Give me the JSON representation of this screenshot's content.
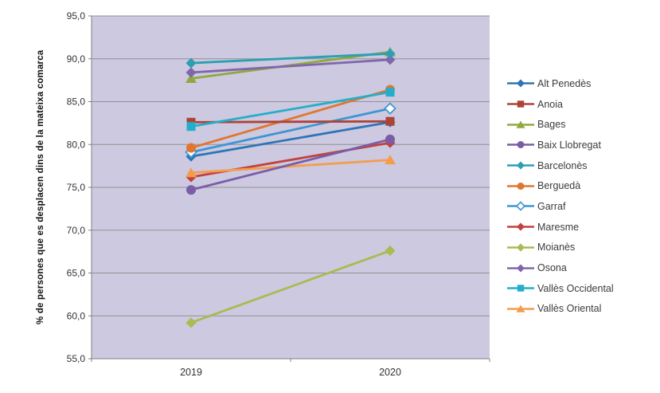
{
  "chart_data": {
    "type": "line",
    "title": "",
    "xlabel": "",
    "ylabel": "% de persones que es desplacen dins de la mateixa comarca",
    "categories": [
      "2019",
      "2020"
    ],
    "ylim": [
      55,
      95
    ],
    "ytick_values": [
      95,
      90,
      85,
      80,
      75,
      70,
      65,
      60,
      55
    ],
    "ytick_labels": [
      "95,0",
      "90,0",
      "85,0",
      "80,0",
      "75,0",
      "70,0",
      "65,0",
      "60,0",
      "55,0"
    ],
    "grid": true,
    "legend_position": "right",
    "colors": {
      "plot_bg": "#CDC9E0",
      "grid": "#929292",
      "axis": "#808080",
      "tick_text": "#333333",
      "legend_text": "#3B3B3B"
    },
    "series": [
      {
        "name": "Alt Penedès",
        "color": "#2E75B6",
        "marker": "diamond",
        "values": [
          78.6,
          82.6
        ]
      },
      {
        "name": "Anoia",
        "color": "#AC4338",
        "marker": "square",
        "values": [
          82.6,
          82.7
        ]
      },
      {
        "name": "Bages",
        "color": "#8FA93C",
        "marker": "triangle",
        "values": [
          87.7,
          90.8
        ]
      },
      {
        "name": "Baix Llobregat",
        "color": "#7A5DA6",
        "marker": "circle",
        "values": [
          74.7,
          80.6
        ]
      },
      {
        "name": "Barcelonès",
        "color": "#2B9FB3",
        "marker": "diamond",
        "values": [
          89.5,
          90.6
        ]
      },
      {
        "name": "Berguedà",
        "color": "#E0762F",
        "marker": "circle",
        "values": [
          79.6,
          86.4
        ]
      },
      {
        "name": "Garraf",
        "color": "#3D96D2",
        "marker": "open-diamond",
        "values": [
          79.1,
          84.2
        ]
      },
      {
        "name": "Maresme",
        "color": "#C2413F",
        "marker": "diamond",
        "values": [
          76.2,
          80.2
        ]
      },
      {
        "name": "Moianès",
        "color": "#A7BC51",
        "marker": "diamond",
        "values": [
          59.2,
          67.6
        ]
      },
      {
        "name": "Osona",
        "color": "#8166AB",
        "marker": "diamond",
        "values": [
          88.4,
          89.9
        ]
      },
      {
        "name": "Vallès Occidental",
        "color": "#25AEC9",
        "marker": "square",
        "values": [
          82.1,
          86.1
        ]
      },
      {
        "name": "Vallès Oriental",
        "color": "#F59C4C",
        "marker": "triangle",
        "values": [
          76.7,
          78.2
        ]
      }
    ],
    "paint_order": [
      "Moianès",
      "Maresme",
      "Vallès Oriental",
      "Alt Penedès",
      "Garraf",
      "Berguedà",
      "Bages",
      "Osona",
      "Barcelonès",
      "Anoia",
      "Vallès Occidental",
      "Baix Llobregat"
    ]
  }
}
